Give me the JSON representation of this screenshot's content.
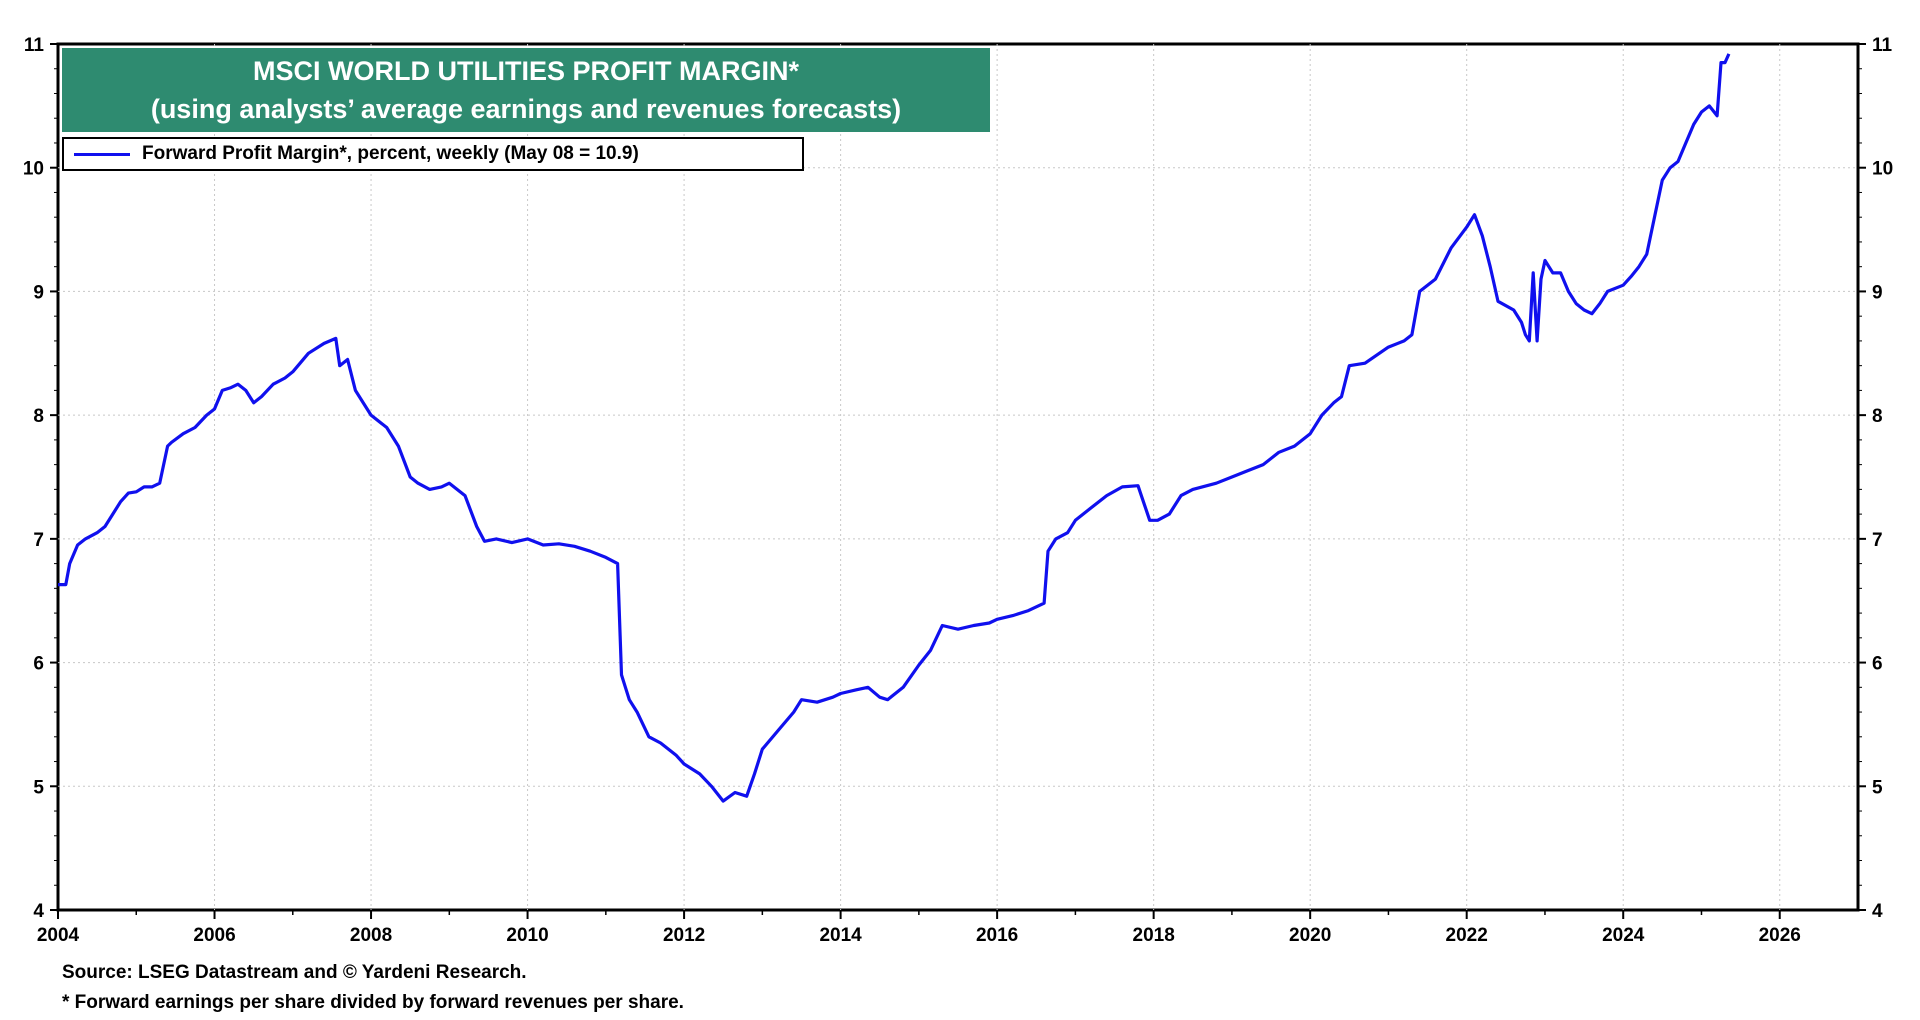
{
  "chart_data": {
    "type": "line",
    "title": "MSCI WORLD UTILITIES PROFIT MARGIN*",
    "subtitle": "(using analysts’ average earnings and revenues forecasts)",
    "legend": "Forward Profit Margin*, percent, weekly (May 08 = 10.9)",
    "legend_position": "top-left",
    "xlim": [
      2004,
      2027
    ],
    "ylim": [
      4,
      11
    ],
    "x_ticks": [
      "2004",
      "2006",
      "2008",
      "2010",
      "2012",
      "2014",
      "2016",
      "2018",
      "2020",
      "2022",
      "2024",
      "2026"
    ],
    "y_ticks": [
      "4",
      "5",
      "6",
      "7",
      "8",
      "9",
      "10",
      "11"
    ],
    "grid": true,
    "series": [
      {
        "name": "Forward Profit Margin",
        "color": "#1010ee",
        "x": [
          2004.0,
          2004.1,
          2004.15,
          2004.25,
          2004.35,
          2004.5,
          2004.6,
          2004.7,
          2004.8,
          2004.9,
          2005.0,
          2005.1,
          2005.2,
          2005.3,
          2005.4,
          2005.45,
          2005.6,
          2005.75,
          2005.9,
          2006.0,
          2006.1,
          2006.2,
          2006.3,
          2006.4,
          2006.5,
          2006.6,
          2006.75,
          2006.9,
          2007.0,
          2007.2,
          2007.4,
          2007.55,
          2007.6,
          2007.7,
          2007.8,
          2008.0,
          2008.2,
          2008.35,
          2008.5,
          2008.6,
          2008.75,
          2008.9,
          2009.0,
          2009.2,
          2009.35,
          2009.45,
          2009.6,
          2009.8,
          2010.0,
          2010.2,
          2010.4,
          2010.6,
          2010.8,
          2011.0,
          2011.15,
          2011.2,
          2011.25,
          2011.3,
          2011.4,
          2011.55,
          2011.7,
          2011.9,
          2012.0,
          2012.2,
          2012.35,
          2012.5,
          2012.65,
          2012.8,
          2012.9,
          2013.0,
          2013.2,
          2013.4,
          2013.5,
          2013.7,
          2013.9,
          2014.0,
          2014.2,
          2014.35,
          2014.5,
          2014.6,
          2014.8,
          2015.0,
          2015.15,
          2015.3,
          2015.5,
          2015.7,
          2015.9,
          2016.0,
          2016.2,
          2016.4,
          2016.6,
          2016.65,
          2016.75,
          2016.9,
          2017.0,
          2017.2,
          2017.4,
          2017.6,
          2017.8,
          2017.95,
          2018.05,
          2018.2,
          2018.35,
          2018.5,
          2018.8,
          2019.0,
          2019.2,
          2019.4,
          2019.6,
          2019.8,
          2020.0,
          2020.15,
          2020.3,
          2020.4,
          2020.5,
          2020.7,
          2021.0,
          2021.2,
          2021.3,
          2021.4,
          2021.6,
          2021.8,
          2022.0,
          2022.1,
          2022.2,
          2022.3,
          2022.4,
          2022.6,
          2022.7,
          2022.75,
          2022.8,
          2022.85,
          2022.9,
          2022.95,
          2023.0,
          2023.1,
          2023.2,
          2023.3,
          2023.4,
          2023.5,
          2023.6,
          2023.7,
          2023.8,
          2024.0,
          2024.1,
          2024.2,
          2024.3,
          2024.4,
          2024.5,
          2024.6,
          2024.7,
          2024.8,
          2024.9,
          2025.0,
          2025.1,
          2025.2,
          2025.25,
          2025.3,
          2025.35
        ],
        "values": [
          6.63,
          6.63,
          6.8,
          6.95,
          7.0,
          7.05,
          7.1,
          7.2,
          7.3,
          7.37,
          7.38,
          7.42,
          7.42,
          7.45,
          7.75,
          7.78,
          7.85,
          7.9,
          8.0,
          8.05,
          8.2,
          8.22,
          8.25,
          8.2,
          8.1,
          8.15,
          8.25,
          8.3,
          8.35,
          8.5,
          8.58,
          8.62,
          8.4,
          8.45,
          8.2,
          8.0,
          7.9,
          7.75,
          7.5,
          7.45,
          7.4,
          7.42,
          7.45,
          7.35,
          7.1,
          6.98,
          7.0,
          6.97,
          7.0,
          6.95,
          6.96,
          6.94,
          6.9,
          6.85,
          6.8,
          5.9,
          5.8,
          5.7,
          5.6,
          5.4,
          5.35,
          5.25,
          5.18,
          5.1,
          5.0,
          4.88,
          4.95,
          4.92,
          5.1,
          5.3,
          5.45,
          5.6,
          5.7,
          5.68,
          5.72,
          5.75,
          5.78,
          5.8,
          5.72,
          5.7,
          5.8,
          5.98,
          6.1,
          6.3,
          6.27,
          6.3,
          6.32,
          6.35,
          6.38,
          6.42,
          6.48,
          6.9,
          7.0,
          7.05,
          7.15,
          7.25,
          7.35,
          7.42,
          7.43,
          7.15,
          7.15,
          7.2,
          7.35,
          7.4,
          7.45,
          7.5,
          7.55,
          7.6,
          7.7,
          7.75,
          7.85,
          8.0,
          8.1,
          8.15,
          8.4,
          8.42,
          8.55,
          8.6,
          8.65,
          9.0,
          9.1,
          9.35,
          9.52,
          9.62,
          9.45,
          9.2,
          8.92,
          8.85,
          8.75,
          8.65,
          8.6,
          9.15,
          8.6,
          9.1,
          9.25,
          9.15,
          9.15,
          9.0,
          8.9,
          8.85,
          8.82,
          8.9,
          9.0,
          9.05,
          9.12,
          9.2,
          9.3,
          9.6,
          9.9,
          10.0,
          10.05,
          10.2,
          10.35,
          10.45,
          10.5,
          10.42,
          10.85,
          10.85,
          10.92
        ]
      }
    ]
  },
  "footer": {
    "source": "Source: LSEG Datastream and © Yardeni Research.",
    "note": "* Forward earnings per share divided by forward revenues per share."
  }
}
